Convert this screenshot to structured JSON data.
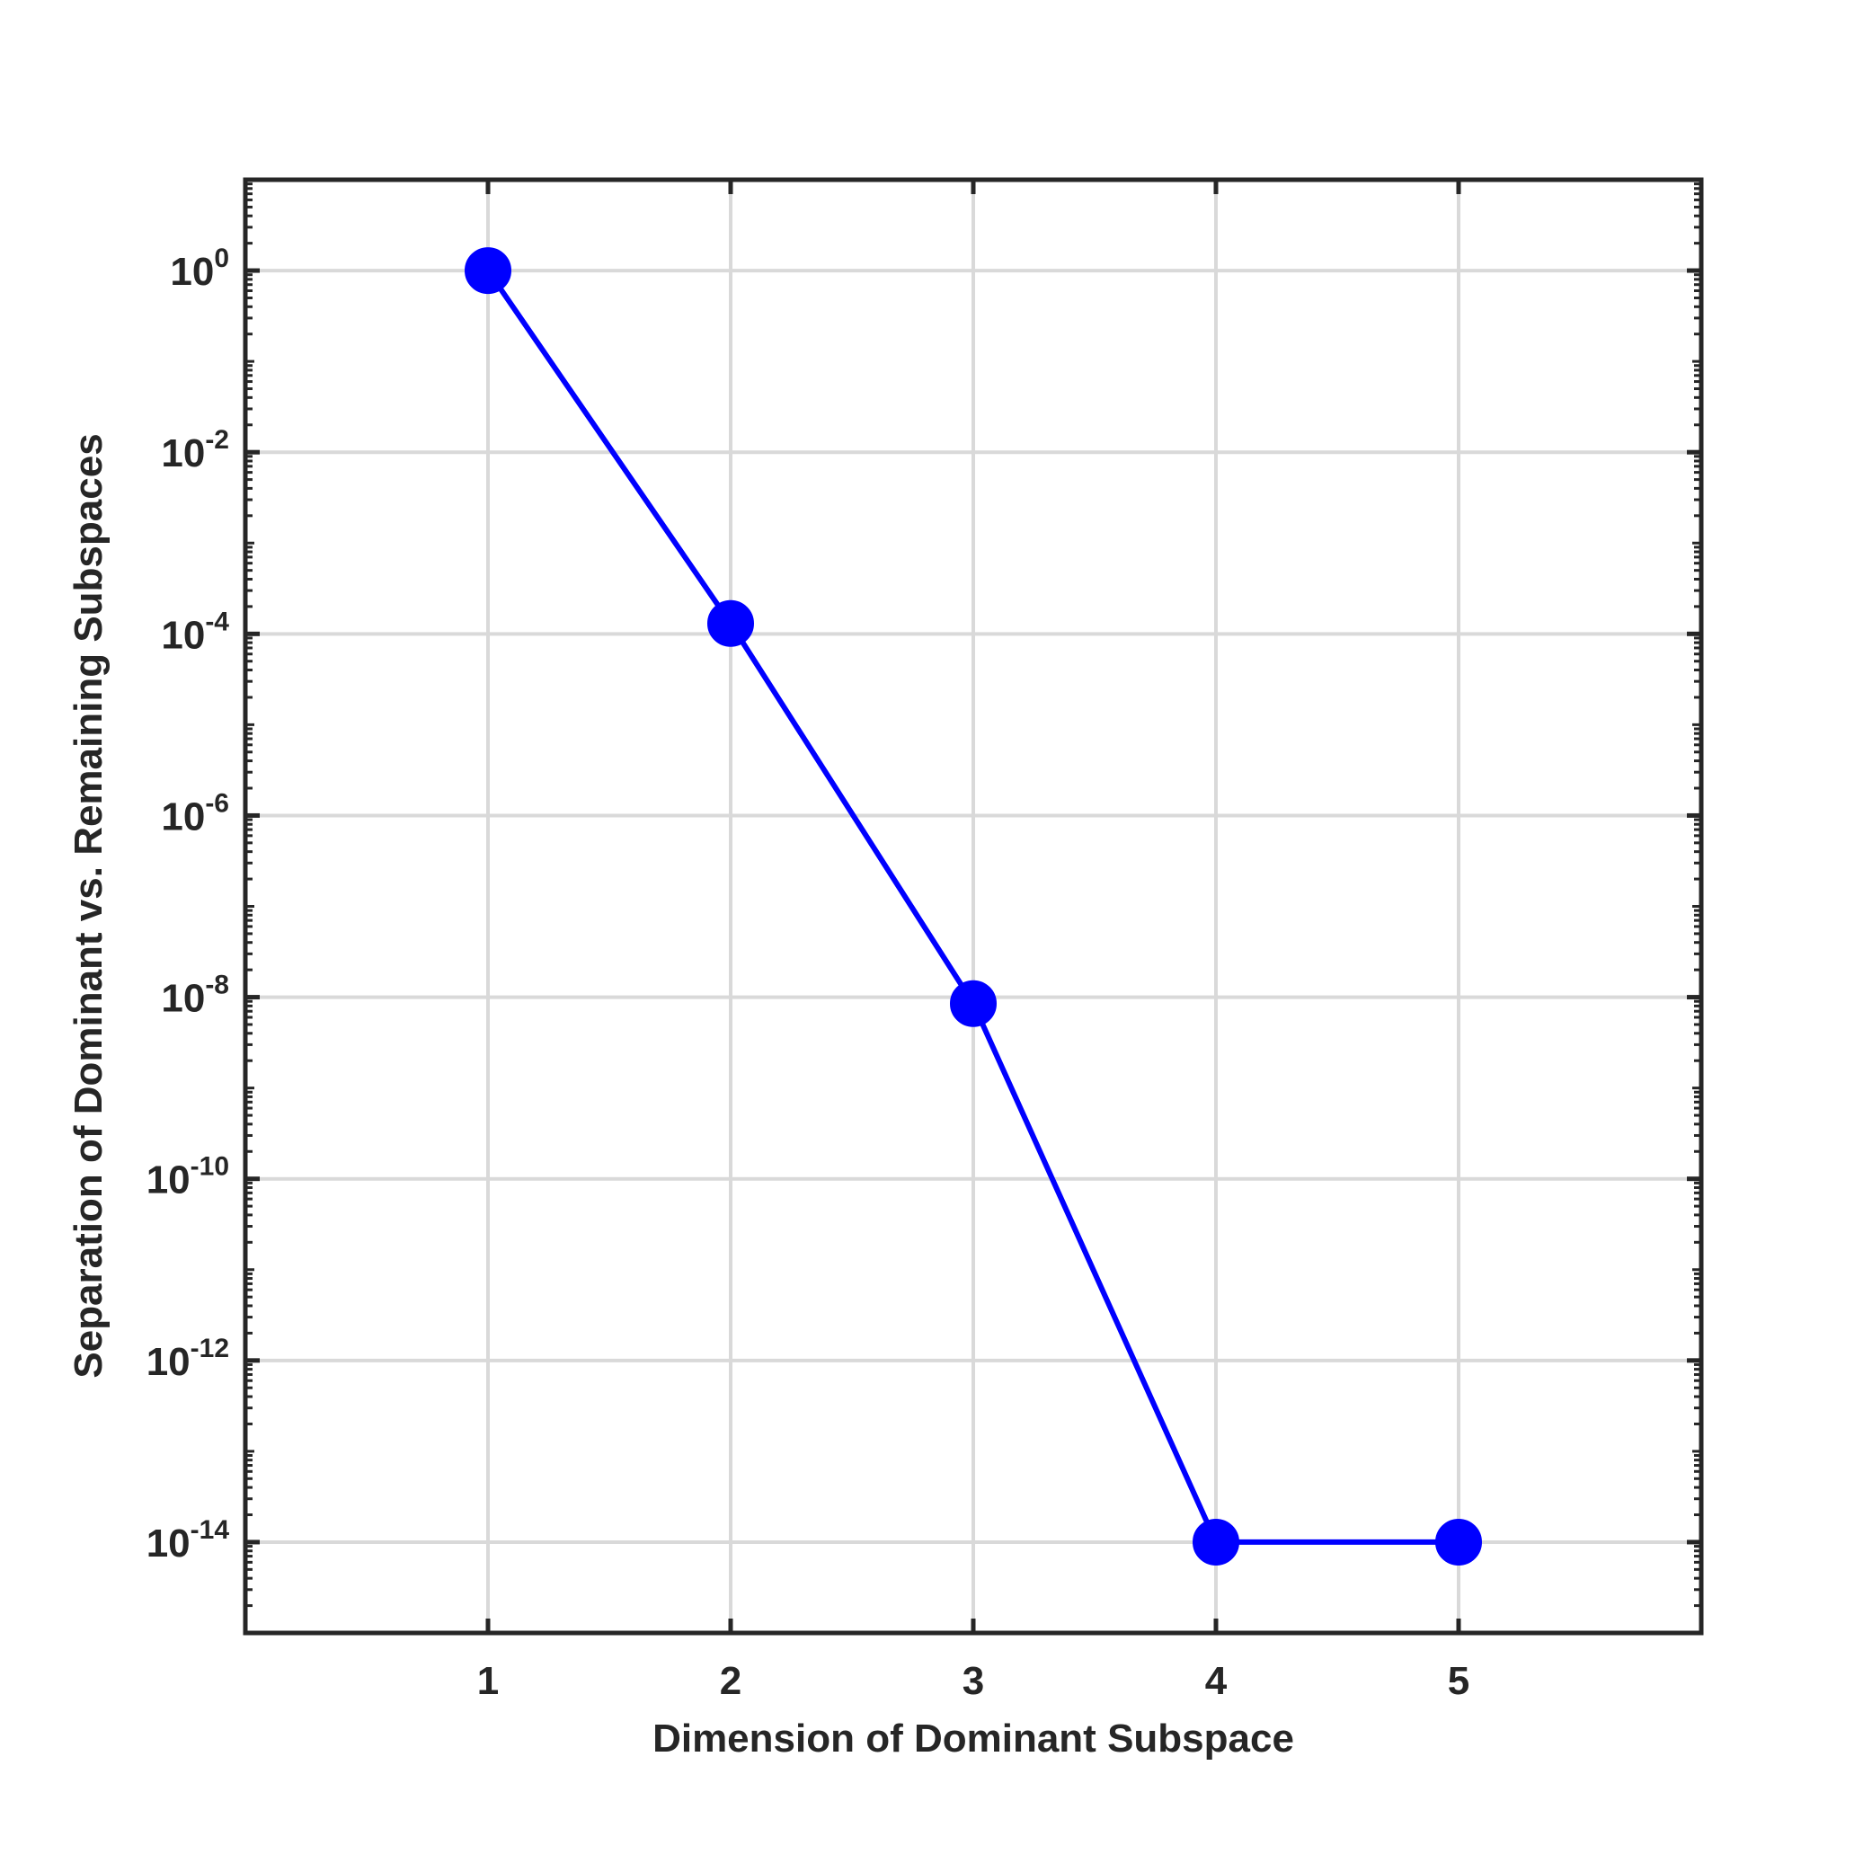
{
  "chart_data": {
    "type": "line",
    "title": "",
    "xlabel": "Dimension of Dominant Subspace",
    "ylabel": "Separation of Dominant vs. Remaining Subspaces",
    "x_scale": "linear",
    "y_scale": "log",
    "xlim": [
      0,
      6
    ],
    "ylim": [
      1e-15,
      10
    ],
    "x_ticks": [
      1,
      2,
      3,
      4,
      5
    ],
    "x_tick_labels": [
      "1",
      "2",
      "3",
      "4",
      "5"
    ],
    "y_ticks": [
      {
        "value": 1,
        "base": "10",
        "exp": "0"
      },
      {
        "value": 0.01,
        "base": "10",
        "exp": "-2"
      },
      {
        "value": 0.0001,
        "base": "10",
        "exp": "-4"
      },
      {
        "value": 1e-06,
        "base": "10",
        "exp": "-6"
      },
      {
        "value": 1e-08,
        "base": "10",
        "exp": "-8"
      },
      {
        "value": 1e-10,
        "base": "10",
        "exp": "-10"
      },
      {
        "value": 1e-12,
        "base": "10",
        "exp": "-12"
      },
      {
        "value": 1e-14,
        "base": "10",
        "exp": "-14"
      }
    ],
    "grid": true,
    "series": [
      {
        "color": "#0000ff",
        "marker": "circle",
        "x": [
          1,
          2,
          3,
          4,
          5
        ],
        "y": [
          1.0,
          0.00013,
          8.5e-09,
          1e-14,
          1e-14
        ]
      }
    ],
    "colors": {
      "axis": "#262626",
      "grid": "#d9d9d9",
      "line": "#0000ff",
      "background": "#ffffff"
    }
  }
}
